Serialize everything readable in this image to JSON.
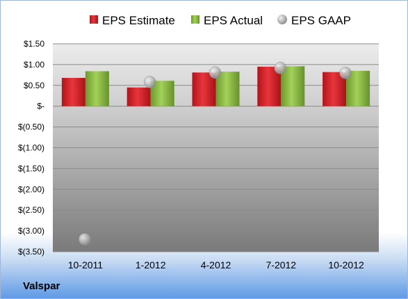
{
  "company": "Valspar",
  "colors": {
    "estimate": "#d8232a",
    "actual": "#8cbf3f",
    "gaap": "#b8b8b8"
  },
  "chart_data": {
    "type": "bar",
    "categories": [
      "10-2011",
      "1-2012",
      "4-2012",
      "7-2012",
      "10-2012"
    ],
    "series": [
      {
        "name": "EPS Estimate",
        "kind": "bar",
        "values": [
          0.68,
          0.45,
          0.81,
          0.95,
          0.82
        ]
      },
      {
        "name": "EPS Actual",
        "kind": "bar",
        "values": [
          0.84,
          0.61,
          0.83,
          0.96,
          0.85
        ]
      },
      {
        "name": "EPS GAAP",
        "kind": "marker",
        "values": [
          -3.2,
          0.58,
          0.81,
          0.92,
          0.8
        ]
      }
    ],
    "ylim": [
      -3.5,
      1.5
    ],
    "yticks": [
      1.5,
      1.0,
      0.5,
      0,
      -0.5,
      -1.0,
      -1.5,
      -2.0,
      -2.5,
      -3.0,
      -3.5
    ],
    "ytick_labels": [
      "$1.50",
      "$1.00",
      "$0.50",
      "$-",
      "$(0.50)",
      "$(1.00)",
      "$(1.50)",
      "$(2.00)",
      "$(2.50)",
      "$(3.00)",
      "$(3.50)"
    ],
    "legend": [
      "EPS Estimate",
      "EPS Actual",
      "EPS GAAP"
    ],
    "legend_position": "top",
    "grid": true
  }
}
